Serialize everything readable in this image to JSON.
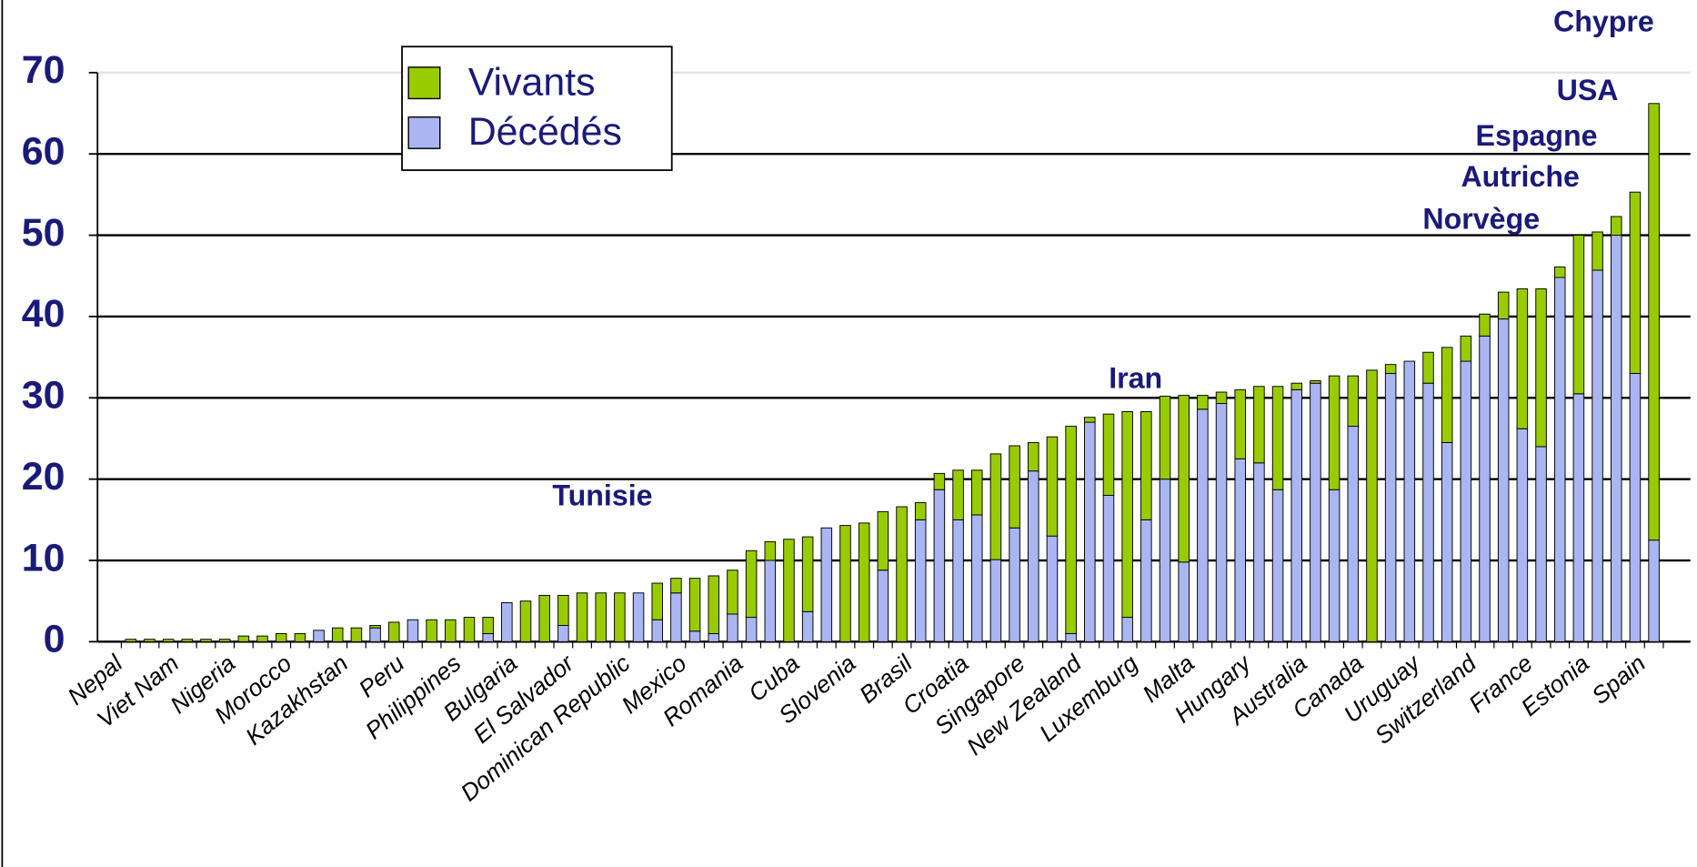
{
  "chart_data": {
    "type": "stacked_bar",
    "categories": [
      "Nepal",
      null,
      null,
      "Viet Nam",
      null,
      null,
      "Nigeria",
      null,
      null,
      "Morocco",
      null,
      null,
      "Kazakhstan",
      null,
      null,
      "Peru",
      null,
      null,
      "Philippines",
      null,
      null,
      "Bulgaria",
      null,
      null,
      "El Salvador",
      null,
      null,
      "Dominican Republic",
      null,
      null,
      "Mexico",
      null,
      null,
      "Romania",
      null,
      null,
      "Cuba",
      null,
      null,
      "Slovenia",
      null,
      null,
      "Brasil",
      null,
      null,
      "Croatia",
      null,
      null,
      "Singapore",
      null,
      null,
      "New Zealand",
      null,
      null,
      "Luxemburg",
      null,
      null,
      "Malta",
      null,
      null,
      "Hungary",
      null,
      null,
      "Australia",
      null,
      null,
      "Canada",
      null,
      null,
      "Uruguay",
      null,
      null,
      "Switzerland",
      null,
      null,
      "France",
      null,
      null,
      "Estonia",
      null,
      null,
      "Spain"
    ],
    "series": [
      {
        "name": "Décédés",
        "color": "#a9b6f2",
        "values": [
          0,
          0,
          0,
          0,
          0,
          0,
          0,
          0,
          0,
          0,
          1.4,
          0,
          0,
          1.7,
          0,
          2.7,
          0,
          0,
          0,
          1,
          4.8,
          0,
          0,
          2,
          0,
          0,
          0,
          6,
          2.7,
          6,
          1.3,
          1,
          3.4,
          3,
          10,
          0,
          3.7,
          14,
          0,
          0,
          8.8,
          0,
          15,
          18.7,
          15,
          15.6,
          10.1,
          14,
          21,
          13,
          1,
          27,
          18,
          3,
          15,
          20,
          9.8,
          28.6,
          29.3,
          22.5,
          22,
          18.7,
          31,
          31.8,
          18.7,
          26.5,
          0,
          33,
          34.5,
          31.8,
          24.5,
          34.5,
          37.6,
          39.7,
          26.2,
          24,
          44.8,
          30.5,
          45.7,
          50,
          33,
          12.5
        ]
      },
      {
        "name": "Vivants",
        "color": "#99cc00",
        "values": [
          0.3,
          0.3,
          0.3,
          0.3,
          0.3,
          0.3,
          0.7,
          0.7,
          1,
          1,
          0,
          1.7,
          1.7,
          0.3,
          2.4,
          0,
          2.7,
          2.7,
          3,
          2,
          0,
          5,
          5.7,
          3.7,
          6,
          6,
          6,
          0,
          4.5,
          1.8,
          6.5,
          7.1,
          5.4,
          8.2,
          2.3,
          12.6,
          9.2,
          0,
          14.3,
          14.6,
          7.2,
          16.6,
          2.1,
          2,
          6.1,
          5.5,
          13,
          10.1,
          3.5,
          12.2,
          25.5,
          0.6,
          10,
          25.3,
          13.3,
          10.2,
          20.5,
          1.7,
          1.4,
          8.5,
          9.4,
          12.7,
          0.8,
          0.3,
          14,
          6.2,
          33.4,
          1.1,
          0,
          3.8,
          11.7,
          3.1,
          2.7,
          3.3,
          17.2,
          19.4,
          1.3,
          19.5,
          4.7,
          2.3,
          22.3,
          53.7
        ]
      }
    ],
    "ylim": [
      0,
      70
    ],
    "yticks": [
      0,
      10,
      20,
      30,
      40,
      50,
      60,
      70
    ],
    "grid": true,
    "annotations": [
      "Chypre",
      "USA",
      "Espagne",
      "Autriche",
      "Norvège",
      "Iran",
      "Tunisie"
    ]
  }
}
